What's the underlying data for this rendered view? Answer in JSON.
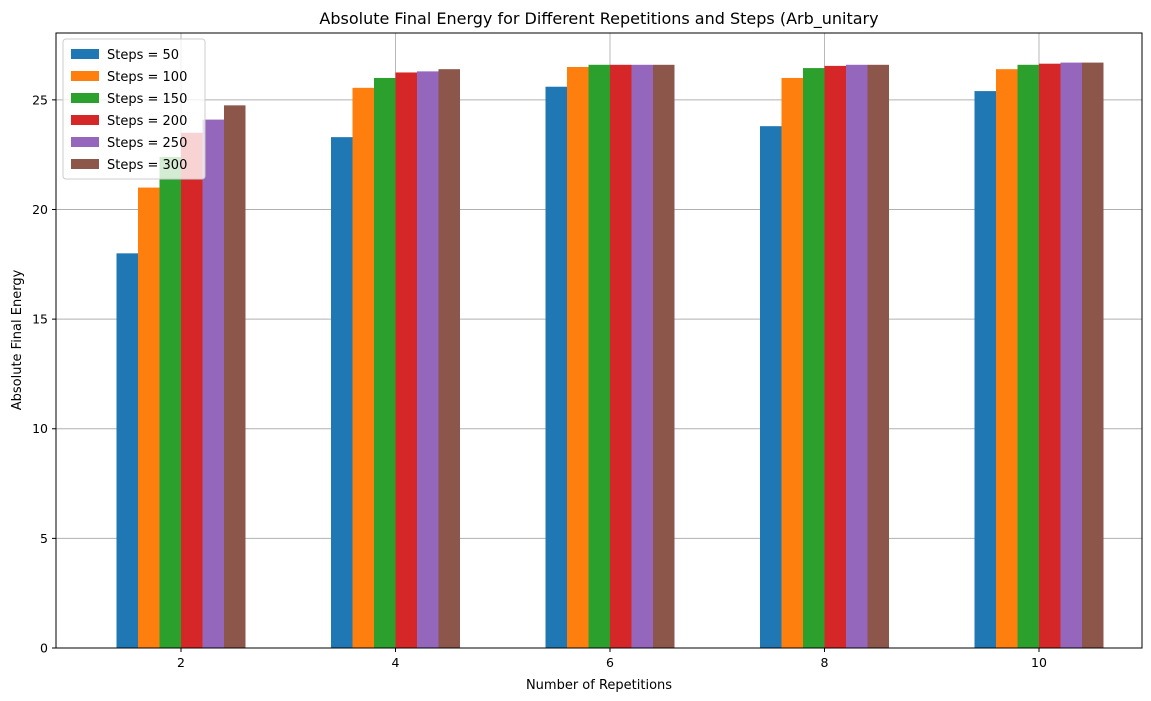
{
  "chart_data": {
    "type": "bar",
    "title": "Absolute Final Energy for Different Repetitions and Steps (Arb_unitary",
    "xlabel": "Number of Repetitions",
    "ylabel": "Absolute Final Energy",
    "categories": [
      "2",
      "4",
      "6",
      "8",
      "10"
    ],
    "ylim": [
      0,
      28.05
    ],
    "yticks": [
      0,
      5,
      10,
      15,
      20,
      25
    ],
    "grid": true,
    "legend_position": "top-left",
    "series": [
      {
        "name": "Steps = 50",
        "color": "#1f77b4",
        "values": [
          18.0,
          23.3,
          25.6,
          23.8,
          25.4
        ]
      },
      {
        "name": "Steps = 100",
        "color": "#ff7f0e",
        "values": [
          21.0,
          25.55,
          26.5,
          26.0,
          26.4
        ]
      },
      {
        "name": "Steps = 150",
        "color": "#2ca02c",
        "values": [
          22.4,
          26.0,
          26.6,
          26.45,
          26.6
        ]
      },
      {
        "name": "Steps = 200",
        "color": "#d62728",
        "values": [
          23.5,
          26.25,
          26.6,
          26.55,
          26.65
        ]
      },
      {
        "name": "Steps = 250",
        "color": "#9467bd",
        "values": [
          24.1,
          26.3,
          26.6,
          26.6,
          26.7
        ]
      },
      {
        "name": "Steps = 300",
        "color": "#8c564b",
        "values": [
          24.75,
          26.4,
          26.6,
          26.6,
          26.7
        ]
      }
    ]
  }
}
